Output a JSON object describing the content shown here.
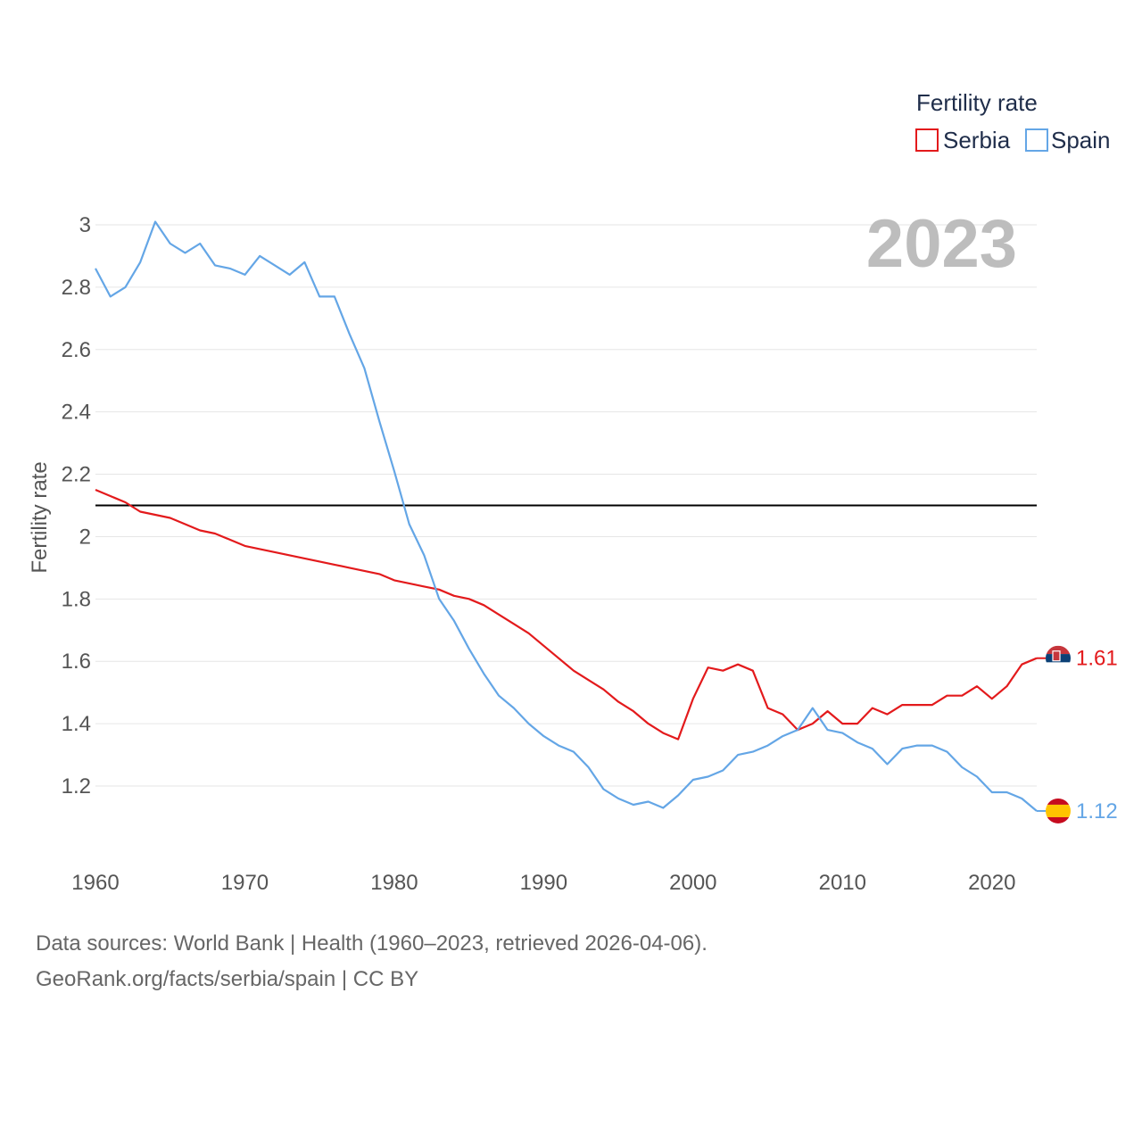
{
  "chart_data": {
    "type": "line",
    "title": "2023",
    "legend_title": "Fertility rate",
    "ylabel": "Fertility rate",
    "xlabel": "",
    "xlim": [
      1960,
      2023
    ],
    "ylim": [
      1.05,
      3.05
    ],
    "x_ticks": [
      1960,
      1970,
      1980,
      1990,
      2000,
      2010,
      2020
    ],
    "y_ticks": [
      1.2,
      1.4,
      1.6,
      1.8,
      2,
      2.2,
      2.4,
      2.6,
      2.8,
      3
    ],
    "reference_line": 2.1,
    "grid": true,
    "legend_position": "top-right",
    "x": [
      1960,
      1961,
      1962,
      1963,
      1964,
      1965,
      1966,
      1967,
      1968,
      1969,
      1970,
      1971,
      1972,
      1973,
      1974,
      1975,
      1976,
      1977,
      1978,
      1979,
      1980,
      1981,
      1982,
      1983,
      1984,
      1985,
      1986,
      1987,
      1988,
      1989,
      1990,
      1991,
      1992,
      1993,
      1994,
      1995,
      1996,
      1997,
      1998,
      1999,
      2000,
      2001,
      2002,
      2003,
      2004,
      2005,
      2006,
      2007,
      2008,
      2009,
      2010,
      2011,
      2012,
      2013,
      2014,
      2015,
      2016,
      2017,
      2018,
      2019,
      2020,
      2021,
      2022,
      2023
    ],
    "series": [
      {
        "name": "Serbia",
        "color": "#e31a1c",
        "end_label": "1.61",
        "values": [
          2.15,
          2.13,
          2.11,
          2.08,
          2.07,
          2.06,
          2.04,
          2.02,
          2.01,
          1.99,
          1.97,
          1.96,
          1.95,
          1.94,
          1.93,
          1.92,
          1.91,
          1.9,
          1.89,
          1.88,
          1.86,
          1.85,
          1.84,
          1.83,
          1.81,
          1.8,
          1.78,
          1.75,
          1.72,
          1.69,
          1.65,
          1.61,
          1.57,
          1.54,
          1.51,
          1.47,
          1.44,
          1.4,
          1.37,
          1.35,
          1.48,
          1.58,
          1.57,
          1.59,
          1.57,
          1.45,
          1.43,
          1.38,
          1.4,
          1.44,
          1.4,
          1.4,
          1.45,
          1.43,
          1.46,
          1.46,
          1.46,
          1.49,
          1.49,
          1.52,
          1.48,
          1.52,
          1.59,
          1.61
        ]
      },
      {
        "name": "Spain",
        "color": "#64a6e6",
        "end_label": "1.12",
        "values": [
          2.86,
          2.77,
          2.8,
          2.88,
          3.01,
          2.94,
          2.91,
          2.94,
          2.87,
          2.86,
          2.84,
          2.9,
          2.87,
          2.84,
          2.88,
          2.77,
          2.77,
          2.65,
          2.54,
          2.37,
          2.21,
          2.04,
          1.94,
          1.8,
          1.73,
          1.64,
          1.56,
          1.49,
          1.45,
          1.4,
          1.36,
          1.33,
          1.31,
          1.26,
          1.19,
          1.16,
          1.14,
          1.15,
          1.13,
          1.17,
          1.22,
          1.23,
          1.25,
          1.3,
          1.31,
          1.33,
          1.36,
          1.38,
          1.45,
          1.38,
          1.37,
          1.34,
          1.32,
          1.27,
          1.32,
          1.33,
          1.33,
          1.31,
          1.26,
          1.23,
          1.18,
          1.18,
          1.16,
          1.12
        ]
      }
    ]
  },
  "footer": {
    "line1": "Data sources: World Bank | Health (1960–2023, retrieved 2026-04-06).",
    "line2": "GeoRank.org/facts/serbia/spain | CC BY"
  }
}
